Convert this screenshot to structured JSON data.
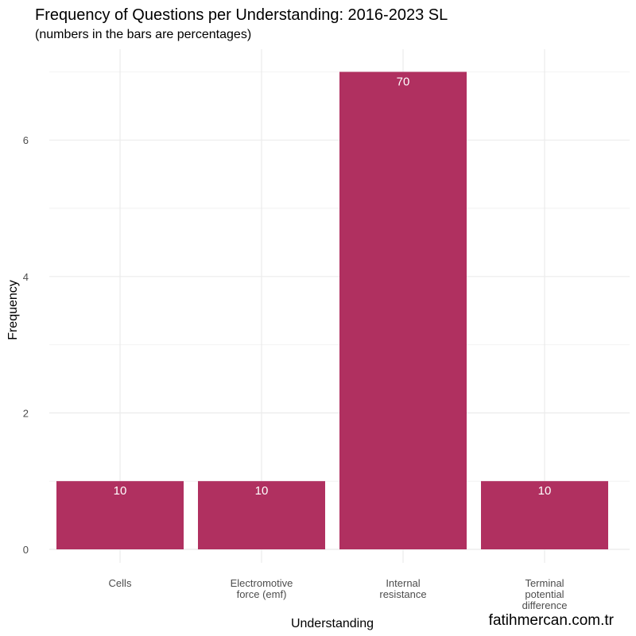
{
  "chart_data": {
    "type": "bar",
    "title": "Frequency of Questions per Understanding: 2016-2023 SL",
    "subtitle": "(numbers in the bars are percentages)",
    "xlabel": "Understanding",
    "ylabel": "Frequency",
    "categories": [
      [
        "Cells"
      ],
      [
        "Electromotive",
        "force (emf)"
      ],
      [
        "Internal",
        "resistance"
      ],
      [
        "Terminal",
        "potential",
        "difference"
      ]
    ],
    "values": [
      1,
      1,
      7,
      1
    ],
    "bar_labels": [
      "10",
      "10",
      "70",
      "10"
    ],
    "ylim": [
      0,
      7.2
    ],
    "yticks": [
      0,
      2,
      4,
      6
    ],
    "grid": true,
    "bar_color": "#B03060"
  },
  "credit": "fatihmercan.com.tr"
}
